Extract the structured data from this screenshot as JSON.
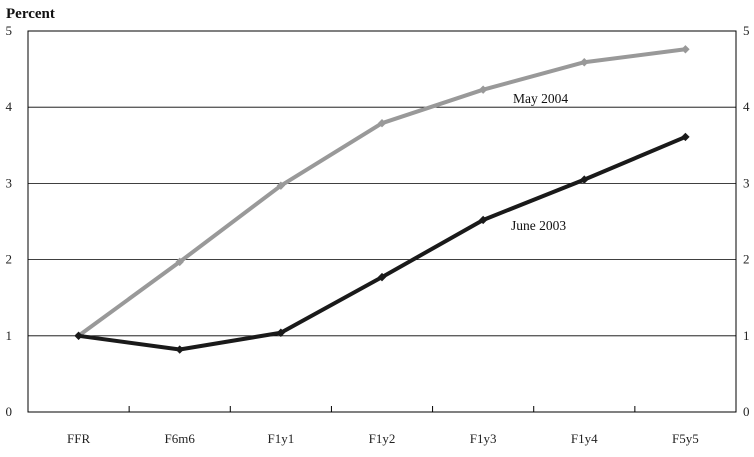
{
  "chart_data": {
    "type": "line",
    "ylabel": "Percent",
    "categories": [
      "FFR",
      "F6m6",
      "F1y1",
      "F1y2",
      "F1y3",
      "F1y4",
      "F5y5"
    ],
    "ylim": [
      0,
      5
    ],
    "yticks": [
      "0",
      "1",
      "2",
      "3",
      "4",
      "5"
    ],
    "grid": true,
    "series": [
      {
        "name": "May 2004",
        "color": "#999999",
        "values": [
          1.0,
          1.97,
          2.97,
          3.79,
          4.23,
          4.59,
          4.76
        ]
      },
      {
        "name": "June 2003",
        "color": "#1a1a1a",
        "values": [
          1.0,
          0.82,
          1.04,
          1.77,
          2.52,
          3.05,
          3.61
        ]
      }
    ]
  }
}
